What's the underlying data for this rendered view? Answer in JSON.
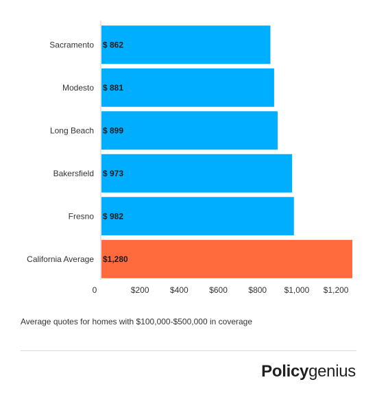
{
  "chart_data": {
    "type": "bar",
    "orientation": "horizontal",
    "categories": [
      "Sacramento",
      "Modesto",
      "Long Beach",
      "Bakersfield",
      "Fresno",
      "California Average"
    ],
    "values": [
      862,
      881,
      899,
      973,
      982,
      1280
    ],
    "value_labels": [
      "$ 862",
      "$ 881",
      "$ 899",
      "$ 973",
      "$ 982",
      "$1,280"
    ],
    "x_ticks": [
      0,
      200,
      400,
      600,
      800,
      1000,
      1200
    ],
    "x_tick_labels": [
      "0",
      "$200",
      "$400",
      "$600",
      "$800",
      "$1,000",
      "$1,200"
    ],
    "xlim": [
      0,
      1280
    ],
    "grid": false,
    "colors": {
      "default_bar": "#00aeff",
      "highlight_bar": "#ff6b3d"
    },
    "highlight_category": "California Average"
  },
  "caption": "Average quotes for homes with $100,000-$500,000 in coverage",
  "brand": {
    "name_bold": "Policy",
    "name_light": "genius"
  }
}
